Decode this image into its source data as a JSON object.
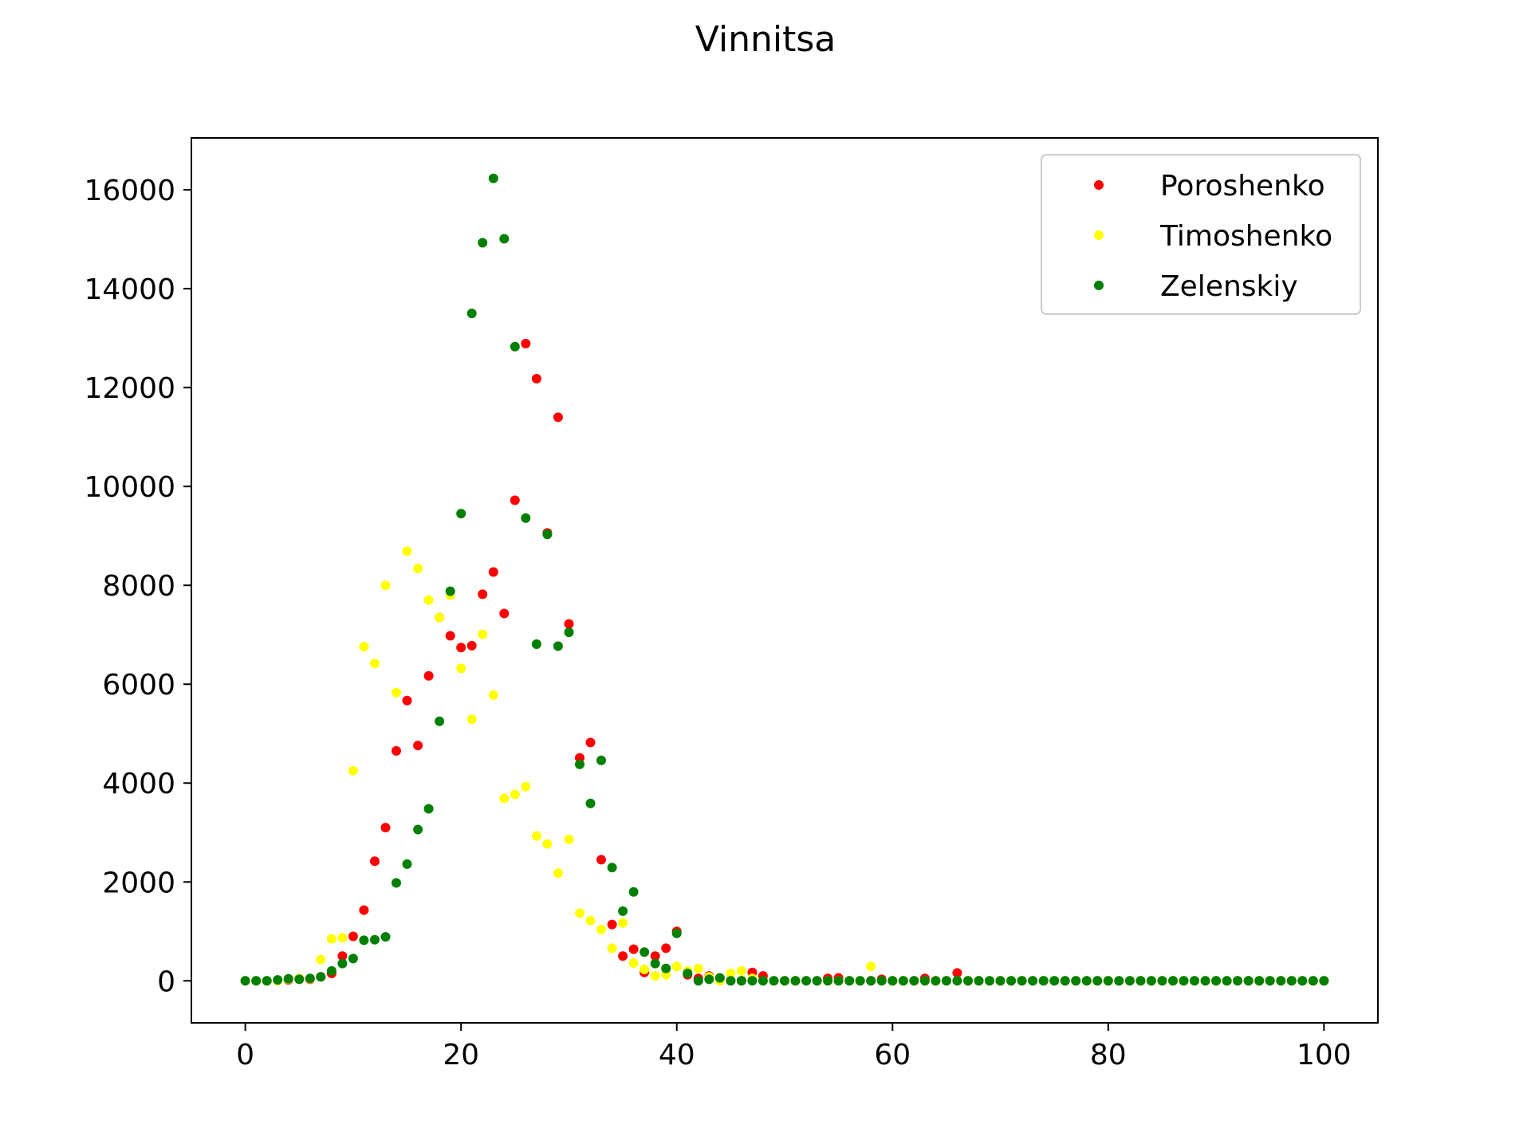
{
  "chart_data": {
    "type": "scatter",
    "title": "Vinnitsa",
    "xlabel": "",
    "ylabel": "",
    "xlim": [
      -5,
      105
    ],
    "ylim": [
      -850,
      17050
    ],
    "x_ticks": [
      0,
      20,
      40,
      60,
      80,
      100
    ],
    "y_ticks": [
      0,
      2000,
      4000,
      6000,
      8000,
      10000,
      12000,
      14000,
      16000
    ],
    "grid": false,
    "legend_position": "top-right",
    "x": [
      0,
      1,
      2,
      3,
      4,
      5,
      6,
      7,
      8,
      9,
      10,
      11,
      12,
      13,
      14,
      15,
      16,
      17,
      18,
      19,
      20,
      21,
      22,
      23,
      24,
      25,
      26,
      27,
      28,
      29,
      30,
      31,
      32,
      33,
      34,
      35,
      36,
      37,
      38,
      39,
      40,
      41,
      42,
      43,
      44,
      45,
      46,
      47,
      48,
      49,
      50,
      51,
      52,
      53,
      54,
      55,
      56,
      57,
      58,
      59,
      60,
      61,
      62,
      63,
      64,
      65,
      66,
      67,
      68,
      69,
      70,
      71,
      72,
      73,
      74,
      75,
      76,
      77,
      78,
      79,
      80,
      81,
      82,
      83,
      84,
      85,
      86,
      87,
      88,
      89,
      90,
      91,
      92,
      93,
      94,
      95,
      96,
      97,
      98,
      99,
      100
    ],
    "series": [
      {
        "name": "Poroshenko",
        "color": "#ff0000",
        "values": [
          0,
          0,
          0,
          10,
          20,
          50,
          30,
          80,
          150,
          500,
          900,
          1430,
          2420,
          3100,
          4650,
          5670,
          4760,
          6170,
          7350,
          6980,
          6740,
          6780,
          7820,
          8270,
          7430,
          9720,
          12890,
          12180,
          9060,
          11400,
          7220,
          4510,
          4820,
          2450,
          1140,
          500,
          640,
          170,
          500,
          660,
          1000,
          120,
          50,
          100,
          50,
          0,
          0,
          170,
          100,
          0,
          0,
          0,
          0,
          0,
          50,
          60,
          0,
          0,
          0,
          30,
          0,
          0,
          0,
          50,
          0,
          0,
          160,
          0,
          0,
          0,
          0,
          0,
          0,
          0,
          0,
          0,
          0,
          0,
          0,
          0,
          0,
          0,
          0,
          0,
          0,
          0,
          0,
          0,
          0,
          0,
          0,
          0,
          0,
          0,
          0,
          0,
          0,
          0,
          0,
          0,
          0
        ]
      },
      {
        "name": "Timoshenko",
        "color": "#ffff00",
        "values": [
          0,
          0,
          0,
          0,
          30,
          50,
          40,
          430,
          850,
          870,
          4250,
          6760,
          6420,
          8000,
          5830,
          8690,
          8340,
          7700,
          7350,
          7800,
          6320,
          5290,
          7010,
          5780,
          3690,
          3770,
          3930,
          2930,
          2770,
          2180,
          2860,
          1370,
          1220,
          1040,
          660,
          1170,
          360,
          230,
          100,
          120,
          290,
          200,
          250,
          80,
          0,
          150,
          200,
          50,
          0,
          0,
          0,
          0,
          0,
          0,
          0,
          0,
          0,
          0,
          290,
          0,
          0,
          0,
          0,
          0,
          0,
          0,
          0,
          0,
          0,
          0,
          0,
          0,
          0,
          0,
          0,
          0,
          0,
          0,
          0,
          0,
          0,
          0,
          0,
          0,
          0,
          0,
          0,
          0,
          0,
          0,
          0,
          0,
          0,
          0,
          0,
          0,
          0,
          0,
          0,
          0,
          0
        ]
      },
      {
        "name": "Zelenskiy",
        "color": "#008000",
        "values": [
          0,
          0,
          0,
          20,
          40,
          30,
          50,
          80,
          200,
          350,
          450,
          820,
          830,
          890,
          1980,
          2360,
          3060,
          3480,
          5250,
          7880,
          9450,
          13500,
          14930,
          16230,
          15010,
          12830,
          9360,
          6810,
          9030,
          6770,
          7050,
          4380,
          3590,
          4460,
          2290,
          1410,
          1800,
          580,
          350,
          250,
          960,
          150,
          0,
          30,
          60,
          0,
          0,
          0,
          0,
          0,
          0,
          0,
          0,
          0,
          0,
          0,
          0,
          0,
          0,
          0,
          0,
          0,
          0,
          0,
          0,
          0,
          0,
          0,
          0,
          0,
          0,
          0,
          0,
          0,
          0,
          0,
          0,
          0,
          0,
          0,
          0,
          0,
          0,
          0,
          0,
          0,
          0,
          0,
          0,
          0,
          0,
          0,
          0,
          0,
          0,
          0,
          0,
          0,
          0,
          0,
          0
        ]
      }
    ]
  }
}
